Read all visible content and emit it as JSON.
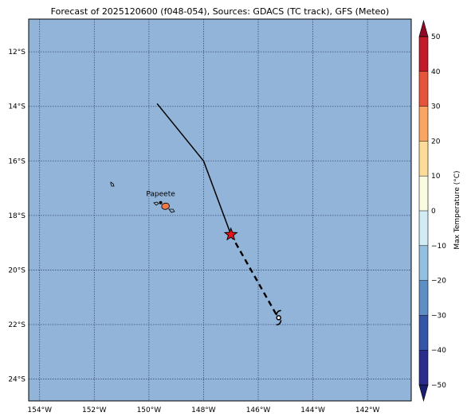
{
  "title": "Forecast of 2025120600 (f048-054), Sources: GDACS (TC track), GFS (Meteo)",
  "colors": {
    "ocean": "#92b4d8",
    "grid": "#3a4a78",
    "track": "#000000",
    "current_marker": "#e8141c",
    "island_fill": "#8fb0d0",
    "highlight_island": "#f07848"
  },
  "map": {
    "lon_range": [
      -154.4,
      -140.4
    ],
    "lat_range": [
      -24.8,
      -10.8
    ],
    "lon_ticks": [
      {
        "value": -154,
        "label": "154°W"
      },
      {
        "value": -152,
        "label": "152°W"
      },
      {
        "value": -150,
        "label": "150°W"
      },
      {
        "value": -148,
        "label": "148°W"
      },
      {
        "value": -146,
        "label": "146°W"
      },
      {
        "value": -144,
        "label": "144°W"
      },
      {
        "value": -142,
        "label": "142°W"
      }
    ],
    "lat_ticks": [
      {
        "value": -12,
        "label": "12°S"
      },
      {
        "value": -14,
        "label": "14°S"
      },
      {
        "value": -16,
        "label": "16°S"
      },
      {
        "value": -18,
        "label": "18°S"
      },
      {
        "value": -20,
        "label": "20°S"
      },
      {
        "value": -22,
        "label": "22°S"
      },
      {
        "value": -24,
        "label": "24°S"
      }
    ],
    "city": {
      "name": "Papeete",
      "lon": -149.57,
      "lat": -17.53
    },
    "track_past": [
      {
        "lon": -149.7,
        "lat": -13.9
      },
      {
        "lon": -148.0,
        "lat": -16.0
      },
      {
        "lon": -147.0,
        "lat": -18.7
      }
    ],
    "track_forecast": [
      {
        "lon": -147.0,
        "lat": -18.7
      },
      {
        "lon": -145.3,
        "lat": -21.7
      }
    ],
    "current_position": {
      "lon": -147.0,
      "lat": -18.7
    },
    "forecast_symbol_position": {
      "lon": -145.25,
      "lat": -21.75
    }
  },
  "colorbar": {
    "label": "Max Temperature (°C)",
    "min": -50,
    "max": 50,
    "ticks": [
      {
        "value": -50,
        "label": "−50"
      },
      {
        "value": -40,
        "label": "−40"
      },
      {
        "value": -30,
        "label": "−30"
      },
      {
        "value": -20,
        "label": "−20"
      },
      {
        "value": -10,
        "label": "−10"
      },
      {
        "value": 0,
        "label": "0"
      },
      {
        "value": 10,
        "label": "10"
      },
      {
        "value": 20,
        "label": "20"
      },
      {
        "value": 30,
        "label": "30"
      },
      {
        "value": 40,
        "label": "40"
      },
      {
        "value": 50,
        "label": "50"
      }
    ],
    "bands": [
      {
        "from": -50,
        "to": -40,
        "color": "#2b2d8c"
      },
      {
        "from": -40,
        "to": -30,
        "color": "#3555a6"
      },
      {
        "from": -30,
        "to": -20,
        "color": "#5d8fc4"
      },
      {
        "from": -20,
        "to": -10,
        "color": "#93c0de"
      },
      {
        "from": -10,
        "to": 0,
        "color": "#d2ecf6"
      },
      {
        "from": 0,
        "to": 10,
        "color": "#fafce0"
      },
      {
        "from": 10,
        "to": 20,
        "color": "#fddc9a"
      },
      {
        "from": 20,
        "to": 30,
        "color": "#f9a664"
      },
      {
        "from": 30,
        "to": 40,
        "color": "#e6553a"
      },
      {
        "from": 40,
        "to": 50,
        "color": "#c01c2a"
      }
    ],
    "extend_low_color": "#1a1f70",
    "extend_high_color": "#8f0a24"
  }
}
